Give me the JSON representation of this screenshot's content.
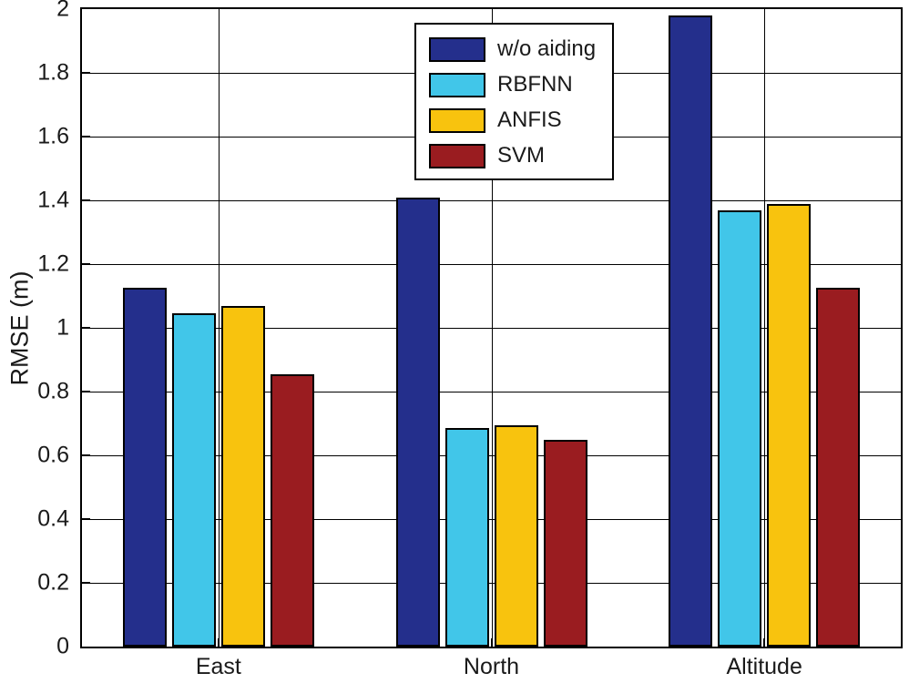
{
  "chart_data": {
    "type": "bar",
    "title": "",
    "categories": [
      "East",
      "North",
      "Altitude"
    ],
    "series": [
      {
        "name": "w/o aiding",
        "color": "#242F8C",
        "values": [
          1.125,
          1.41,
          1.98
        ]
      },
      {
        "name": "RBFNN",
        "color": "#41C6E9",
        "values": [
          1.045,
          0.685,
          1.37
        ]
      },
      {
        "name": "ANFIS",
        "color": "#F8C30E",
        "values": [
          1.07,
          0.695,
          1.39
        ]
      },
      {
        "name": "SVM",
        "color": "#9A1C20",
        "values": [
          0.855,
          0.65,
          1.125
        ]
      }
    ],
    "xlabel": "",
    "ylabel": "RMSE (m)",
    "ylim": [
      0,
      2
    ],
    "yticks": [
      0,
      0.2,
      0.4,
      0.6,
      0.8,
      1,
      1.2,
      1.4,
      1.6,
      1.8,
      2
    ],
    "grid": true,
    "axis_color": "#000000",
    "background_color": "#ffffff",
    "legend_position": "top-center",
    "legend_entries": [
      "w/o aiding",
      "RBFNN",
      "ANFIS",
      "SVM"
    ]
  }
}
